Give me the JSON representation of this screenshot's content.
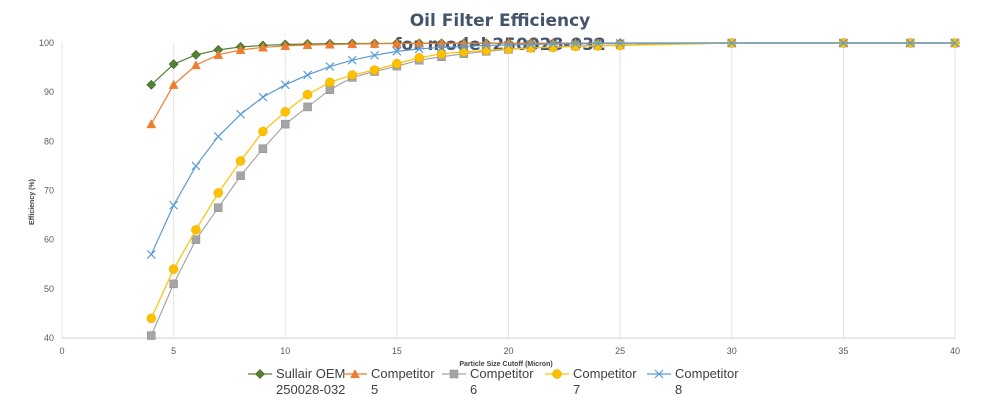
{
  "chart_data": {
    "type": "scatter",
    "title_line1": "Oil Filter Efficiency",
    "title_line2": "for model 250028-032",
    "xlabel": "Particle Size Cutoff (Micron)",
    "ylabel": "Efficiency (%)",
    "xlim": [
      0,
      40
    ],
    "ylim": [
      40,
      100
    ],
    "xticks": [
      "0",
      "5",
      "10",
      "15",
      "20",
      "25",
      "30",
      "35",
      "40"
    ],
    "yticks": [
      "40",
      "50",
      "60",
      "70",
      "80",
      "90",
      "100"
    ],
    "grid": "vertical",
    "legend_position": "bottom",
    "series": [
      {
        "name_line1": "Sullair OEM",
        "name_line2": "250028-032",
        "color": "#548235",
        "marker": "diamond",
        "x": [
          4,
          5,
          6,
          7,
          8,
          9,
          10,
          11,
          12,
          13,
          14,
          15,
          16,
          17,
          18,
          19,
          20,
          21,
          22,
          23,
          24,
          25,
          30,
          35,
          38,
          40
        ],
        "y": [
          91.5,
          95.7,
          97.6,
          98.6,
          99.2,
          99.5,
          99.7,
          99.8,
          99.85,
          99.9,
          99.9,
          99.95,
          99.95,
          99.95,
          99.96,
          99.97,
          99.98,
          99.98,
          99.98,
          99.99,
          99.99,
          100,
          100,
          100,
          100,
          100
        ]
      },
      {
        "name_line1": "Competitor",
        "name_line2": "5",
        "color": "#ed7d31",
        "marker": "triangle",
        "x": [
          4,
          5,
          6,
          7,
          8,
          9,
          10,
          11,
          12,
          13,
          14,
          15,
          16,
          17,
          18,
          19,
          20,
          21,
          22,
          23,
          24,
          25,
          30,
          35,
          38,
          40
        ],
        "y": [
          83.5,
          91.5,
          95.5,
          97.6,
          98.6,
          99.1,
          99.4,
          99.6,
          99.7,
          99.8,
          99.85,
          99.9,
          99.92,
          99.94,
          99.95,
          99.96,
          99.97,
          99.97,
          99.98,
          99.98,
          99.99,
          99.99,
          100,
          100,
          100,
          100
        ]
      },
      {
        "name_line1": "Competitor",
        "name_line2": "6",
        "color": "#a5a5a5",
        "marker": "square",
        "x": [
          4,
          5,
          6,
          7,
          8,
          9,
          10,
          11,
          12,
          13,
          14,
          15,
          16,
          17,
          18,
          19,
          20,
          21,
          22,
          23,
          24,
          25,
          30,
          35,
          38,
          40
        ],
        "y": [
          40.5,
          51,
          60,
          66.5,
          73,
          78.5,
          83.5,
          87,
          90.5,
          93,
          94.2,
          95.3,
          96.5,
          97.2,
          97.8,
          98.3,
          98.7,
          99,
          99.2,
          99.4,
          99.5,
          99.6,
          100,
          100,
          100,
          100
        ]
      },
      {
        "name_line1": "Competitor",
        "name_line2": "7",
        "color": "#ffc000",
        "marker": "circle",
        "x": [
          4,
          5,
          6,
          7,
          8,
          9,
          10,
          11,
          12,
          13,
          14,
          15,
          16,
          17,
          18,
          19,
          20,
          21,
          22,
          23,
          24,
          25,
          30,
          35,
          38,
          40
        ],
        "y": [
          44,
          54,
          62,
          69.5,
          76,
          82,
          86,
          89.5,
          92,
          93.5,
          94.5,
          95.8,
          97,
          97.8,
          98.2,
          98.5,
          98.8,
          99,
          99.1,
          99.3,
          99.4,
          99.5,
          100,
          100,
          100,
          100
        ]
      },
      {
        "name_line1": "Competitor",
        "name_line2": "8",
        "color": "#5b9bd5",
        "marker": "x",
        "x": [
          4,
          5,
          6,
          7,
          8,
          9,
          10,
          11,
          12,
          13,
          14,
          15,
          16,
          17,
          18,
          19,
          20,
          21,
          22,
          23,
          24,
          25,
          30,
          35,
          38,
          40
        ],
        "y": [
          57,
          67,
          75,
          81,
          85.5,
          89,
          91.5,
          93.5,
          95.2,
          96.5,
          97.5,
          98.3,
          98.8,
          99.1,
          99.3,
          99.5,
          99.6,
          99.7,
          99.8,
          99.85,
          99.9,
          99.95,
          100,
          100,
          100,
          100
        ]
      }
    ]
  }
}
